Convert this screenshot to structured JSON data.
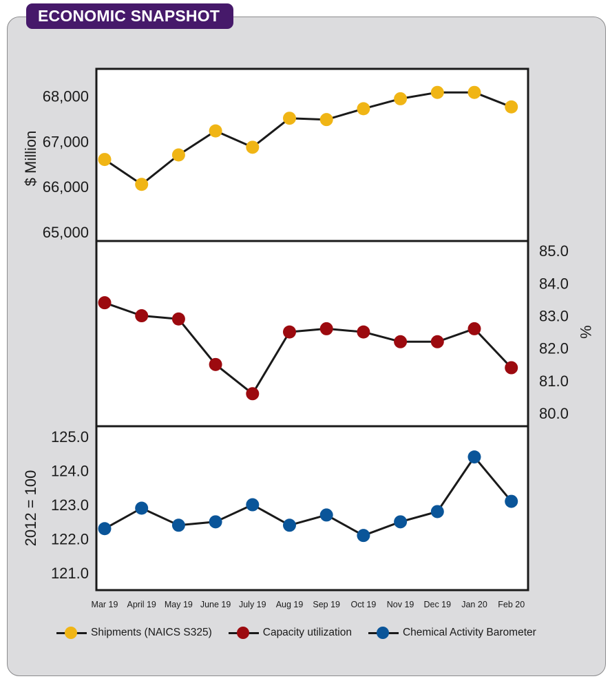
{
  "header": {
    "title": "ECONOMIC SNAPSHOT"
  },
  "colors": {
    "shipments": "#f0b515",
    "capacity": "#9c0a0f",
    "cab": "#0a5599",
    "line": "#1a1a1a",
    "tag_bg": "#46196a"
  },
  "chart_data": {
    "type": "line",
    "categories": [
      "Mar 19",
      "April 19",
      "May 19",
      "June 19",
      "July 19",
      "Aug 19",
      "Sep 19",
      "Oct 19",
      "Nov 19",
      "Dec 19",
      "Jan 20",
      "Feb 20"
    ],
    "panels": [
      {
        "name": "shipments",
        "series_name": "Shipments (NAICS S325)",
        "ylabel": "$ Million",
        "ylim": [
          64800,
          68600
        ],
        "ticks": [
          65000,
          66000,
          67000,
          68000
        ],
        "tick_labels": [
          "65,000",
          "66,000",
          "67,000",
          "68,000"
        ],
        "axis_side": "left",
        "values": [
          66600,
          66050,
          66700,
          67230,
          66870,
          67510,
          67480,
          67720,
          67940,
          68080,
          68080,
          67760
        ]
      },
      {
        "name": "capacity",
        "series_name": "Capacity utilization",
        "ylabel": "%",
        "ylim": [
          79.6,
          85.3
        ],
        "ticks": [
          80.0,
          81.0,
          82.0,
          83.0,
          84.0,
          85.0
        ],
        "tick_labels": [
          "80.0",
          "81.0",
          "82.0",
          "83.0",
          "84.0",
          "85.0"
        ],
        "axis_side": "right",
        "values": [
          83.4,
          83.0,
          82.9,
          81.5,
          80.6,
          82.5,
          82.6,
          82.5,
          82.2,
          82.2,
          82.6,
          81.4
        ]
      },
      {
        "name": "cab",
        "series_name": "Chemical Activity Barometer",
        "ylabel": "2012 = 100",
        "ylim": [
          120.5,
          125.3
        ],
        "ticks": [
          121.0,
          122.0,
          123.0,
          124.0,
          125.0
        ],
        "tick_labels": [
          "121.0",
          "122.0",
          "123.0",
          "124.0",
          "125.0"
        ],
        "axis_side": "left",
        "values": [
          122.3,
          122.9,
          122.4,
          122.5,
          123.0,
          122.4,
          122.7,
          122.1,
          122.5,
          122.8,
          124.4,
          123.1
        ]
      }
    ]
  },
  "legend": {
    "items": [
      {
        "label": "Shipments (NAICS S325)"
      },
      {
        "label": "Capacity utilization"
      },
      {
        "label": "Chemical Activity Barometer"
      }
    ]
  }
}
